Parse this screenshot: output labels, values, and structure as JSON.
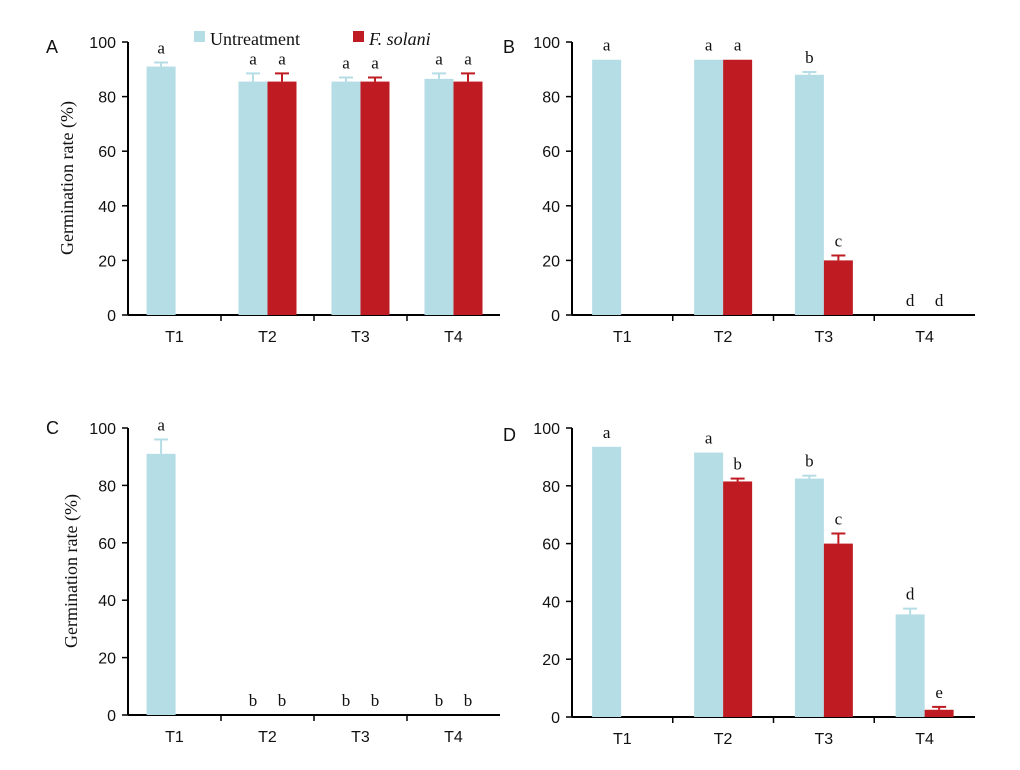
{
  "colors": {
    "untreatment": "#b5dde5",
    "fsolani": "#be1c22"
  },
  "legend": {
    "untreatment": "Untreatment",
    "fsolani": "F. solani"
  },
  "chart_data": [
    {
      "type": "bar",
      "panel": "A",
      "ylabel": "Germination rate (%)",
      "ylim": [
        0,
        100
      ],
      "yticks": [
        0,
        20,
        40,
        60,
        80,
        100
      ],
      "categories": [
        "T1",
        "T2",
        "T3",
        "T4"
      ],
      "series": [
        {
          "name": "Untreatment",
          "values": [
            91,
            85.5,
            85.5,
            86.5
          ],
          "errors": [
            1.5,
            3,
            1.5,
            2
          ],
          "letters": [
            "a",
            "a",
            "a",
            "a"
          ]
        },
        {
          "name": "F. solani",
          "values": [
            null,
            85.5,
            85.5,
            85.5
          ],
          "errors": [
            null,
            3,
            1.5,
            3
          ],
          "letters": [
            "",
            "a",
            "a",
            "a"
          ]
        }
      ]
    },
    {
      "type": "bar",
      "panel": "B",
      "ylabel": "",
      "ylim": [
        0,
        100
      ],
      "yticks": [
        0,
        20,
        40,
        60,
        80,
        100
      ],
      "categories": [
        "T1",
        "T2",
        "T3",
        "T4"
      ],
      "series": [
        {
          "name": "Untreatment",
          "values": [
            93.5,
            93.5,
            88,
            0
          ],
          "errors": [
            0,
            0,
            1,
            0
          ],
          "letters": [
            "a",
            "a",
            "b",
            "d"
          ]
        },
        {
          "name": "F. solani",
          "values": [
            null,
            93.5,
            20,
            0
          ],
          "errors": [
            null,
            0,
            1.8,
            0
          ],
          "letters": [
            "",
            "a",
            "c",
            "d"
          ]
        }
      ]
    },
    {
      "type": "bar",
      "panel": "C",
      "ylabel": "Germination rate (%)",
      "ylim": [
        0,
        100
      ],
      "yticks": [
        0,
        20,
        40,
        60,
        80,
        100
      ],
      "categories": [
        "T1",
        "T2",
        "T3",
        "T4"
      ],
      "series": [
        {
          "name": "Untreatment",
          "values": [
            91,
            0,
            0,
            0
          ],
          "errors": [
            5,
            0,
            0,
            0
          ],
          "letters": [
            "a",
            "b",
            "b",
            "b"
          ]
        },
        {
          "name": "F. solani",
          "values": [
            null,
            0,
            0,
            0
          ],
          "errors": [
            null,
            0,
            0,
            0
          ],
          "letters": [
            "",
            "b",
            "b",
            "b"
          ]
        }
      ]
    },
    {
      "type": "bar",
      "panel": "D",
      "ylabel": "",
      "ylim": [
        0,
        100
      ],
      "yticks": [
        0,
        20,
        40,
        60,
        80,
        100
      ],
      "categories": [
        "T1",
        "T2",
        "T3",
        "T4"
      ],
      "series": [
        {
          "name": "Untreatment",
          "values": [
            93.5,
            91.5,
            82.5,
            35.5
          ],
          "errors": [
            0,
            0,
            1,
            2
          ],
          "letters": [
            "a",
            "a",
            "b",
            "d"
          ]
        },
        {
          "name": "F. solani",
          "values": [
            null,
            81.5,
            60,
            2.5
          ],
          "errors": [
            null,
            1,
            3.5,
            1
          ],
          "letters": [
            "",
            "b",
            "c",
            "e"
          ]
        }
      ]
    }
  ]
}
